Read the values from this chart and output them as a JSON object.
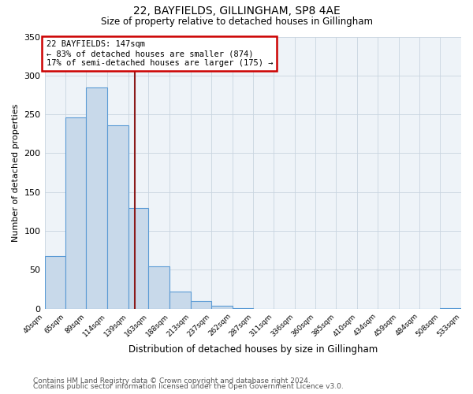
{
  "title": "22, BAYFIELDS, GILLINGHAM, SP8 4AE",
  "subtitle": "Size of property relative to detached houses in Gillingham",
  "xlabel": "Distribution of detached houses by size in Gillingham",
  "ylabel": "Number of detached properties",
  "bar_left_edges": [
    40,
    65,
    89,
    114,
    139,
    163,
    188,
    213,
    237,
    262,
    287,
    311,
    336,
    360,
    385,
    410,
    434,
    459,
    484,
    508
  ],
  "bar_widths": [
    25,
    24,
    25,
    25,
    24,
    25,
    25,
    24,
    25,
    25,
    24,
    25,
    24,
    25,
    25,
    24,
    25,
    25,
    24,
    25
  ],
  "bar_heights": [
    68,
    246,
    285,
    236,
    129,
    54,
    22,
    10,
    4,
    1,
    0,
    0,
    0,
    0,
    0,
    0,
    0,
    0,
    0,
    1
  ],
  "tick_labels": [
    "40sqm",
    "65sqm",
    "89sqm",
    "114sqm",
    "139sqm",
    "163sqm",
    "188sqm",
    "213sqm",
    "237sqm",
    "262sqm",
    "287sqm",
    "311sqm",
    "336sqm",
    "360sqm",
    "385sqm",
    "410sqm",
    "434sqm",
    "459sqm",
    "484sqm",
    "508sqm",
    "533sqm"
  ],
  "bar_color": "#c8d9ea",
  "bar_edge_color": "#5b9bd5",
  "vline_x": 147,
  "vline_color": "#8b1a1a",
  "annotation_title": "22 BAYFIELDS: 147sqm",
  "annotation_line1": "← 83% of detached houses are smaller (874)",
  "annotation_line2": "17% of semi-detached houses are larger (175) →",
  "annotation_box_color": "#cc0000",
  "ylim": [
    0,
    350
  ],
  "yticks": [
    0,
    50,
    100,
    150,
    200,
    250,
    300,
    350
  ],
  "footer1": "Contains HM Land Registry data © Crown copyright and database right 2024.",
  "footer2": "Contains public sector information licensed under the Open Government Licence v3.0.",
  "bg_color": "#ffffff",
  "plot_bg_color": "#eef3f8",
  "grid_color": "#c8d4e0"
}
